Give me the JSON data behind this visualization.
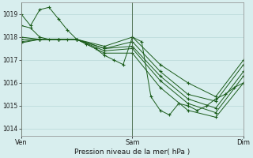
{
  "xlabel": "Pression niveau de la mer( hPa )",
  "background_color": "#d8eeee",
  "grid_color": "#b8d8d8",
  "line_color": "#1a5c1a",
  "ylim": [
    1013.7,
    1019.5
  ],
  "yticks": [
    1014,
    1015,
    1016,
    1017,
    1018,
    1019
  ],
  "xtick_labels": [
    "Ven",
    "Sam",
    "Dim"
  ],
  "xtick_positions": [
    0,
    48,
    96
  ],
  "x_total": 96,
  "series": [
    [
      0,
      1019.0,
      4,
      1018.5,
      8,
      1019.2,
      12,
      1019.3,
      16,
      1018.8,
      20,
      1018.3,
      24,
      1017.9,
      28,
      1017.7,
      32,
      1017.5,
      36,
      1017.2,
      40,
      1017.0,
      44,
      1016.8,
      48,
      1018.0,
      52,
      1017.8,
      56,
      1015.4,
      60,
      1014.8,
      64,
      1014.6,
      68,
      1015.1,
      72,
      1015.0,
      76,
      1014.8,
      80,
      1015.0,
      84,
      1015.3,
      88,
      1015.5,
      92,
      1015.8,
      96,
      1016.0
    ],
    [
      0,
      1018.5,
      4,
      1018.4,
      8,
      1018.0,
      12,
      1017.9,
      16,
      1017.9,
      20,
      1017.9,
      24,
      1017.9,
      36,
      1017.6,
      48,
      1018.0,
      60,
      1016.8,
      72,
      1016.0,
      84,
      1015.4,
      96,
      1017.0
    ],
    [
      0,
      1018.0,
      8,
      1017.9,
      16,
      1017.9,
      24,
      1017.9,
      36,
      1017.5,
      48,
      1017.8,
      60,
      1016.5,
      72,
      1015.5,
      84,
      1015.2,
      96,
      1016.8
    ],
    [
      0,
      1017.9,
      8,
      1017.9,
      16,
      1017.9,
      24,
      1017.9,
      36,
      1017.5,
      48,
      1017.6,
      60,
      1016.3,
      72,
      1015.3,
      84,
      1014.9,
      96,
      1016.5
    ],
    [
      0,
      1017.8,
      8,
      1017.9,
      16,
      1017.9,
      24,
      1017.9,
      36,
      1017.4,
      48,
      1017.5,
      60,
      1016.1,
      72,
      1015.1,
      84,
      1014.7,
      96,
      1016.3
    ],
    [
      0,
      1017.75,
      8,
      1017.9,
      16,
      1017.9,
      24,
      1017.9,
      36,
      1017.3,
      48,
      1017.3,
      60,
      1015.8,
      72,
      1014.8,
      84,
      1014.5,
      96,
      1016.0
    ]
  ]
}
